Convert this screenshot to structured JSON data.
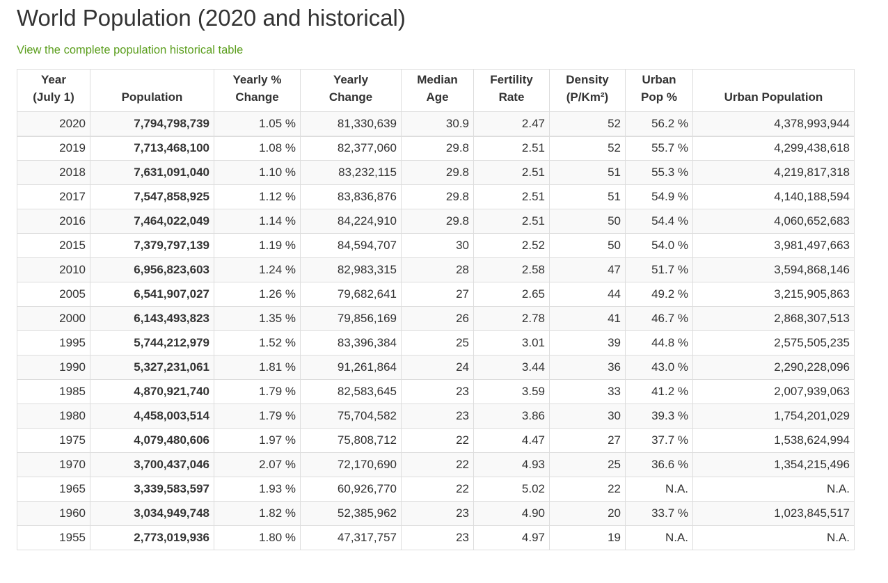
{
  "page": {
    "title": "World Population (2020 and historical)",
    "link_text": "View the complete population historical table"
  },
  "colors": {
    "link": "#5b9e1d",
    "text": "#333333",
    "border": "#dddddd",
    "stripe": "#f9f9f9"
  },
  "table": {
    "headers": [
      {
        "key": "year",
        "line1": "Year",
        "line2": "(July 1)"
      },
      {
        "key": "population",
        "line1": "",
        "line2": "Population"
      },
      {
        "key": "yearly-pct-change",
        "line1": "Yearly %",
        "line2": "Change"
      },
      {
        "key": "yearly-change",
        "line1": "Yearly",
        "line2": "Change"
      },
      {
        "key": "median-age",
        "line1": "Median",
        "line2": "Age"
      },
      {
        "key": "fertility-rate",
        "line1": "Fertility",
        "line2": "Rate"
      },
      {
        "key": "density",
        "line1": "Density",
        "line2": "(P/Km²)"
      },
      {
        "key": "urban-pop-pct",
        "line1": "Urban",
        "line2": "Pop %"
      },
      {
        "key": "urban-population",
        "line1": "",
        "line2": "Urban Population"
      }
    ],
    "rows": [
      [
        "2020",
        "7,794,798,739",
        "1.05 %",
        "81,330,639",
        "30.9",
        "2.47",
        "52",
        "56.2 %",
        "4,378,993,944"
      ],
      [
        "2019",
        "7,713,468,100",
        "1.08 %",
        "82,377,060",
        "29.8",
        "2.51",
        "52",
        "55.7 %",
        "4,299,438,618"
      ],
      [
        "2018",
        "7,631,091,040",
        "1.10 %",
        "83,232,115",
        "29.8",
        "2.51",
        "51",
        "55.3 %",
        "4,219,817,318"
      ],
      [
        "2017",
        "7,547,858,925",
        "1.12 %",
        "83,836,876",
        "29.8",
        "2.51",
        "51",
        "54.9 %",
        "4,140,188,594"
      ],
      [
        "2016",
        "7,464,022,049",
        "1.14 %",
        "84,224,910",
        "29.8",
        "2.51",
        "50",
        "54.4 %",
        "4,060,652,683"
      ],
      [
        "2015",
        "7,379,797,139",
        "1.19 %",
        "84,594,707",
        "30",
        "2.52",
        "50",
        "54.0 %",
        "3,981,497,663"
      ],
      [
        "2010",
        "6,956,823,603",
        "1.24 %",
        "82,983,315",
        "28",
        "2.58",
        "47",
        "51.7 %",
        "3,594,868,146"
      ],
      [
        "2005",
        "6,541,907,027",
        "1.26 %",
        "79,682,641",
        "27",
        "2.65",
        "44",
        "49.2 %",
        "3,215,905,863"
      ],
      [
        "2000",
        "6,143,493,823",
        "1.35 %",
        "79,856,169",
        "26",
        "2.78",
        "41",
        "46.7 %",
        "2,868,307,513"
      ],
      [
        "1995",
        "5,744,212,979",
        "1.52 %",
        "83,396,384",
        "25",
        "3.01",
        "39",
        "44.8 %",
        "2,575,505,235"
      ],
      [
        "1990",
        "5,327,231,061",
        "1.81 %",
        "91,261,864",
        "24",
        "3.44",
        "36",
        "43.0 %",
        "2,290,228,096"
      ],
      [
        "1985",
        "4,870,921,740",
        "1.79 %",
        "82,583,645",
        "23",
        "3.59",
        "33",
        "41.2 %",
        "2,007,939,063"
      ],
      [
        "1980",
        "4,458,003,514",
        "1.79 %",
        "75,704,582",
        "23",
        "3.86",
        "30",
        "39.3 %",
        "1,754,201,029"
      ],
      [
        "1975",
        "4,079,480,606",
        "1.97 %",
        "75,808,712",
        "22",
        "4.47",
        "27",
        "37.7 %",
        "1,538,624,994"
      ],
      [
        "1970",
        "3,700,437,046",
        "2.07 %",
        "72,170,690",
        "22",
        "4.93",
        "25",
        "36.6 %",
        "1,354,215,496"
      ],
      [
        "1965",
        "3,339,583,597",
        "1.93 %",
        "60,926,770",
        "22",
        "5.02",
        "22",
        "N.A.",
        "N.A."
      ],
      [
        "1960",
        "3,034,949,748",
        "1.82 %",
        "52,385,962",
        "23",
        "4.90",
        "20",
        "33.7 %",
        "1,023,845,517"
      ],
      [
        "1955",
        "2,773,019,936",
        "1.80 %",
        "47,317,757",
        "23",
        "4.97",
        "19",
        "N.A.",
        "N.A."
      ]
    ]
  }
}
